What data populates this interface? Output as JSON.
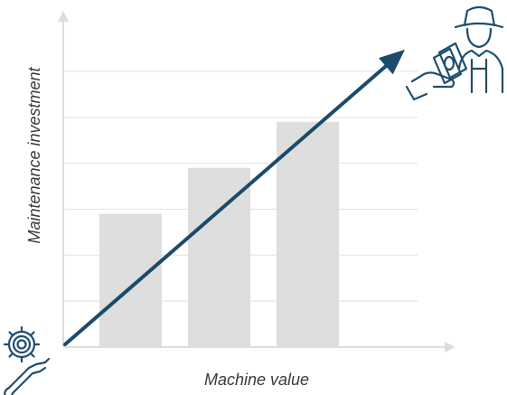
{
  "chart_data": {
    "type": "bar",
    "categories": [
      "",
      "",
      ""
    ],
    "values": [
      2.9,
      3.9,
      4.9
    ],
    "xlabel": "Machine value",
    "ylabel": "Maintenance investment",
    "ylim": [
      0,
      7
    ],
    "grid": true,
    "trend_arrow": {
      "from": [
        0,
        0
      ],
      "to": [
        1,
        6
      ]
    }
  },
  "colors": {
    "bar": "#dedede",
    "grid": "#e6e6e6",
    "axis": "#dddddd",
    "arrow": "#1b4a6b",
    "icon": "#1f4e6e"
  },
  "icons": {
    "origin": "gear-wrench-icon",
    "target": "farmer-cash-hand-icon"
  }
}
